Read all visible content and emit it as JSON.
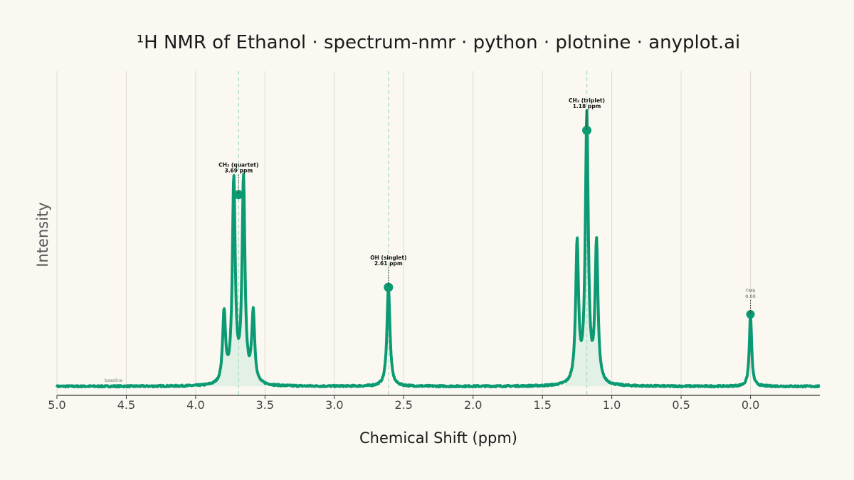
{
  "chart_data": {
    "type": "line",
    "title": "¹H NMR of Ethanol · spectrum-nmr · python · plotnine · anyplot.ai",
    "xlabel": "Chemical Shift (ppm)",
    "ylabel": "Intensity",
    "x_reversed": true,
    "xlim": [
      5.0,
      -0.5
    ],
    "ylim": [
      -0.07,
      2.45
    ],
    "x_ticks": [
      "5.0",
      "4.5",
      "4.0",
      "3.5",
      "3.0",
      "2.5",
      "2.0",
      "1.5",
      "1.0",
      "0.5",
      "0.0"
    ],
    "x_tick_values": [
      5.0,
      4.5,
      4.0,
      3.5,
      3.0,
      2.5,
      2.0,
      1.5,
      1.0,
      0.5,
      0.0
    ],
    "grid": "vertical",
    "line_color": "#0B9A72",
    "fill_color": "#DDEFE4",
    "background": "#FAF8F1",
    "baseline_label": "baseline",
    "peaks": [
      {
        "name": "CH₂ (quartet)",
        "shift": 3.69,
        "shift_label": "3.69 ppm",
        "marker_y": 1.49,
        "j": 0.07,
        "pattern": [
          0.55,
          1.58,
          1.58,
          0.55
        ],
        "width": 0.0125,
        "shaded": true,
        "dashed_line": true
      },
      {
        "name": "OH (singlet)",
        "shift": 2.61,
        "shift_label": "2.61 ppm",
        "marker_y": 0.77,
        "j": 0,
        "pattern": [
          0.77
        ],
        "width": 0.013,
        "shaded": false,
        "dashed_line": true
      },
      {
        "name": "CH₃ (triplet)",
        "shift": 1.18,
        "shift_label": "1.18 ppm",
        "marker_y": 1.99,
        "j": 0.07,
        "pattern": [
          1.08,
          2.08,
          1.08
        ],
        "width": 0.0125,
        "shaded": true,
        "dashed_line": true
      },
      {
        "name": "TMS",
        "shift": 0.0,
        "shift_label": "0.00",
        "marker_y": 0.56,
        "j": 0,
        "pattern": [
          0.56
        ],
        "width": 0.01,
        "shaded": false,
        "dashed_line": false
      }
    ]
  }
}
